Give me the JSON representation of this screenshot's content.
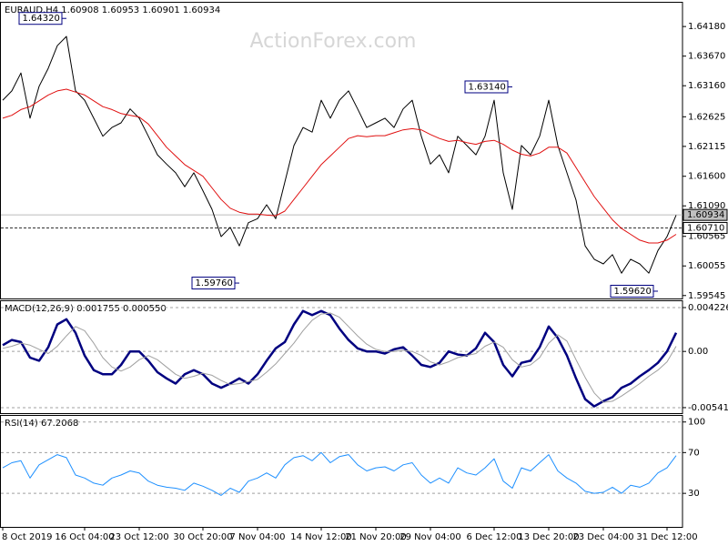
{
  "chart_data": [
    {
      "type": "line",
      "title": "EURAUD,H4 1.60908 1.60953 1.60901 1.60934",
      "watermark": "ActionForex.com",
      "xlim": [
        0,
        74.7
      ],
      "xticks": [
        {
          "value": 0,
          "label": "8 Oct 2019"
        },
        {
          "value": 9,
          "label": "16 Oct 04:00"
        },
        {
          "value": 15,
          "label": "23 Oct 12:00"
        },
        {
          "value": 22,
          "label": "30 Oct 20:00"
        },
        {
          "value": 28,
          "label": "7 Nov 04:00"
        },
        {
          "value": 35,
          "label": "14 Nov 12:00"
        },
        {
          "value": 41,
          "label": "21 Nov 20:00"
        },
        {
          "value": 47,
          "label": "29 Nov 04:00"
        },
        {
          "value": 54,
          "label": "6 Dec 12:00"
        },
        {
          "value": 60,
          "label": "13 Dec 20:00"
        },
        {
          "value": 66,
          "label": "23 Dec 04:00"
        },
        {
          "value": 73,
          "label": "31 Dec 12:00"
        }
      ],
      "ylim": [
        1.5951,
        1.6459
      ],
      "yticks": [
        {
          "value": 1.6418,
          "label": "1.64180"
        },
        {
          "value": 1.6367,
          "label": "1.63670"
        },
        {
          "value": 1.6316,
          "label": "1.63160"
        },
        1.62625,
        1.62115,
        {
          "value": 1.616,
          "label": "1.61600"
        },
        {
          "value": 1.6109,
          "label": "1.61090"
        },
        1.60565,
        1.60055,
        1.59545
      ],
      "series": [
        {
          "color": "#000000",
          "values": [
            1.6291,
            1.6307,
            1.6338,
            1.626,
            1.6315,
            1.6346,
            1.6385,
            1.6401,
            1.6307,
            1.6291,
            1.626,
            1.6229,
            1.6244,
            1.6252,
            1.6276,
            1.626,
            1.6229,
            1.6197,
            1.6181,
            1.6166,
            1.6142,
            1.6166,
            1.6135,
            1.6103,
            1.6056,
            1.6072,
            1.604,
            1.608,
            1.6087,
            1.6111,
            1.6087,
            1.615,
            1.6213,
            1.6244,
            1.6236,
            1.6291,
            1.626,
            1.6291,
            1.6307,
            1.6276,
            1.6244,
            1.6252,
            1.626,
            1.6244,
            1.6276,
            1.6291,
            1.6229,
            1.6181,
            1.6197,
            1.6166,
            1.6229,
            1.6213,
            1.6197,
            1.6229,
            1.6291,
            1.6166,
            1.6103,
            1.6213,
            1.6197,
            1.6229,
            1.6291,
            1.6213,
            1.6166,
            1.6119,
            1.604,
            1.6017,
            1.6009,
            1.6025,
            1.5993,
            1.6017,
            1.6009,
            1.5993,
            1.6032,
            1.6056,
            1.6093
          ]
        },
        {
          "color": "#e01010",
          "values": [
            1.626,
            1.6265,
            1.6275,
            1.628,
            1.629,
            1.63,
            1.6307,
            1.631,
            1.6305,
            1.63,
            1.629,
            1.628,
            1.6275,
            1.6268,
            1.6265,
            1.6262,
            1.625,
            1.623,
            1.621,
            1.6195,
            1.618,
            1.617,
            1.616,
            1.614,
            1.612,
            1.6105,
            1.6098,
            1.6095,
            1.6095,
            1.6093,
            1.6092,
            1.61,
            1.612,
            1.614,
            1.616,
            1.618,
            1.6195,
            1.621,
            1.6225,
            1.623,
            1.6228,
            1.623,
            1.623,
            1.6235,
            1.624,
            1.6242,
            1.624,
            1.6232,
            1.6225,
            1.622,
            1.6222,
            1.6218,
            1.6215,
            1.622,
            1.6222,
            1.6215,
            1.6205,
            1.6198,
            1.6195,
            1.62,
            1.621,
            1.621,
            1.62,
            1.6175,
            1.615,
            1.6125,
            1.6105,
            1.6085,
            1.607,
            1.606,
            1.605,
            1.6045,
            1.6045,
            1.605,
            1.606
          ]
        }
      ],
      "annotations": [
        {
          "x": 7,
          "value": 1.6432,
          "label": "1.64320"
        },
        {
          "x": 56,
          "value": 1.6314,
          "label": "1.63140"
        },
        {
          "x": 26,
          "value": 1.5976,
          "label": "1.59760"
        },
        {
          "x": 72,
          "value": 1.5962,
          "label": "1.59620"
        }
      ],
      "price_lines": [
        {
          "value": 1.60934,
          "label": "1.60934",
          "style": "solid"
        },
        {
          "value": 1.6071,
          "label": "1.60710",
          "style": "dashed"
        }
      ]
    },
    {
      "type": "line",
      "title": "MACD(12,26,9) 0.001755 0.000550",
      "xlim": [
        0,
        74.7
      ],
      "ylim": [
        -0.00586,
        0.00484
      ],
      "yticks": [
        0.004226,
        {
          "value": 0,
          "label": "0.00"
        },
        -0.005417
      ],
      "grid": true,
      "series": [
        {
          "color": "#000080",
          "width": 2.5,
          "values": [
            0.0006,
            0.0011,
            0.0009,
            -0.0006,
            -0.0009,
            0.0004,
            0.0026,
            0.0031,
            0.0018,
            -0.0004,
            -0.0018,
            -0.0022,
            -0.0022,
            -0.0013,
            0,
            0,
            -0.0009,
            -0.002,
            -0.0026,
            -0.0031,
            -0.0022,
            -0.0018,
            -0.0022,
            -0.0031,
            -0.0035,
            -0.0031,
            -0.0026,
            -0.0031,
            -0.0022,
            -0.0009,
            0.0003,
            0.0009,
            0.0026,
            0.0039,
            0.0035,
            0.0039,
            0.0035,
            0.0022,
            0.0011,
            0.0003,
            0,
            0,
            -0.0002,
            0.0002,
            0.0004,
            -0.0004,
            -0.0013,
            -0.0015,
            -0.0011,
            0,
            -0.0003,
            -0.0004,
            0.0003,
            0.0018,
            0.0009,
            -0.0013,
            -0.0024,
            -0.0011,
            -0.0009,
            0.0004,
            0.0024,
            0.0013,
            -0.0004,
            -0.0026,
            -0.0046,
            -0.0053,
            -0.0048,
            -0.0044,
            -0.0035,
            -0.0031,
            -0.0024,
            -0.0018,
            -0.0011,
            0,
            0.0018
          ]
        },
        {
          "color": "#a0a0a0",
          "width": 1,
          "values": [
            0.0003,
            0.0005,
            0.0008,
            0.0006,
            0.0002,
            -0.0002,
            0.0005,
            0.0015,
            0.0024,
            0.002,
            0.0008,
            -0.0006,
            -0.0015,
            -0.0019,
            -0.0015,
            -0.0008,
            -0.0004,
            -0.0008,
            -0.0015,
            -0.0022,
            -0.0026,
            -0.0024,
            -0.0021,
            -0.0023,
            -0.0028,
            -0.0032,
            -0.0031,
            -0.0029,
            -0.0027,
            -0.002,
            -0.0012,
            -0.0002,
            0.0008,
            0.002,
            0.003,
            0.0036,
            0.0037,
            0.0033,
            0.0024,
            0.0015,
            0.0007,
            0.0002,
            0,
            0,
            0.0001,
            0,
            -0.0004,
            -0.001,
            -0.0013,
            -0.001,
            -0.0006,
            -0.0004,
            -0.0002,
            0.0005,
            0.0009,
            0.0004,
            -0.0008,
            -0.0015,
            -0.0013,
            -0.0006,
            0.0008,
            0.0016,
            0.001,
            -0.0008,
            -0.0025,
            -0.004,
            -0.0049,
            -0.0048,
            -0.0043,
            -0.0037,
            -0.0031,
            -0.0024,
            -0.0018,
            -0.001,
            0.0005
          ]
        }
      ]
    },
    {
      "type": "line",
      "title": "RSI(14) 67.2068",
      "xlim": [
        0,
        74.7
      ],
      "ylim": [
        -2,
        106
      ],
      "yticks": [
        100,
        70,
        30
      ],
      "grid": true,
      "series": [
        {
          "color": "#1e90ff",
          "width": 1,
          "values": [
            55,
            60,
            62,
            45,
            58,
            63,
            68,
            65,
            48,
            45,
            40,
            38,
            45,
            48,
            52,
            50,
            42,
            38,
            36,
            35,
            33,
            40,
            37,
            33,
            28,
            35,
            31,
            42,
            45,
            50,
            45,
            58,
            65,
            67,
            62,
            70,
            60,
            66,
            68,
            58,
            52,
            55,
            56,
            52,
            58,
            60,
            48,
            40,
            45,
            40,
            55,
            50,
            48,
            55,
            64,
            42,
            35,
            55,
            52,
            60,
            68,
            52,
            45,
            40,
            32,
            30,
            31,
            36,
            30,
            38,
            36,
            40,
            50,
            55,
            67
          ]
        }
      ]
    }
  ]
}
